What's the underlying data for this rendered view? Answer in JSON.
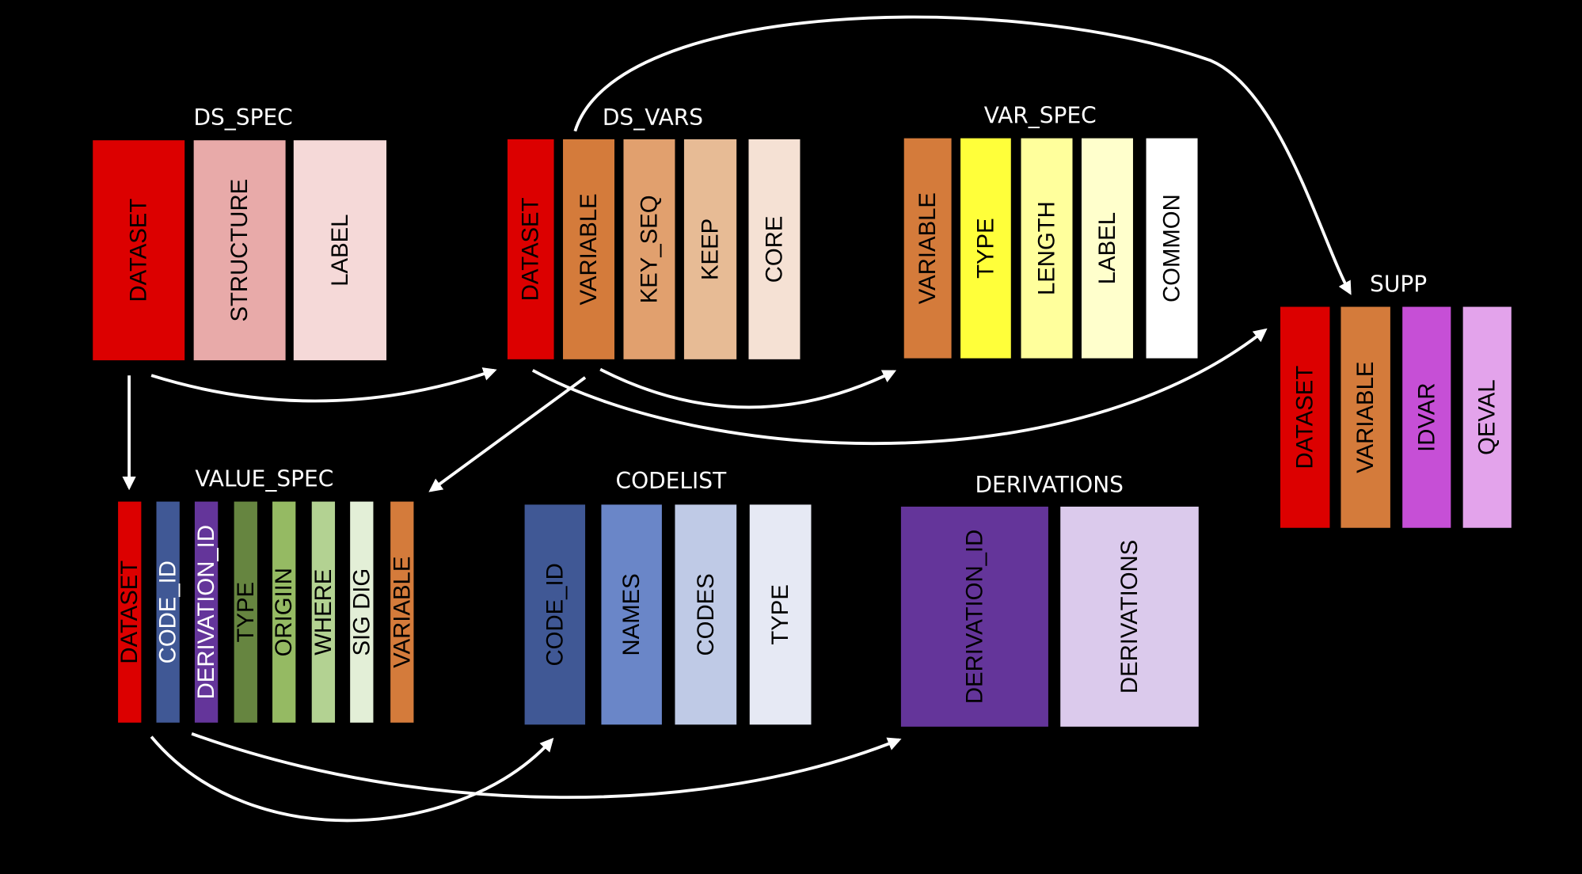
{
  "tables": [
    {
      "id": "ds_spec",
      "title": "DS_SPEC",
      "columns": [
        {
          "label": "DATASET",
          "color": "#dc0000",
          "text": "#000"
        },
        {
          "label": "STRUCTURE",
          "color": "#e8aaa9",
          "text": "#000"
        },
        {
          "label": "LABEL",
          "color": "#f5d9d8",
          "text": "#000"
        }
      ]
    },
    {
      "id": "ds_vars",
      "title": "DS_VARS",
      "columns": [
        {
          "label": "DATASET",
          "color": "#dc0000",
          "text": "#000"
        },
        {
          "label": "VARIABLE",
          "color": "#d47b3b",
          "text": "#000"
        },
        {
          "label": "KEY_SEQ",
          "color": "#e1a06e",
          "text": "#000"
        },
        {
          "label": "KEEP",
          "color": "#e7bb95",
          "text": "#000"
        },
        {
          "label": "CORE",
          "color": "#f5e1d4",
          "text": "#000"
        }
      ]
    },
    {
      "id": "var_spec",
      "title": "VAR_SPEC",
      "columns": [
        {
          "label": "VARIABLE",
          "color": "#d47b3b",
          "text": "#000"
        },
        {
          "label": "TYPE",
          "color": "#ffff3a",
          "text": "#000"
        },
        {
          "label": "LENGTH",
          "color": "#ffff9c",
          "text": "#000"
        },
        {
          "label": "LABEL",
          "color": "#ffffcc",
          "text": "#000"
        },
        {
          "label": "COMMON",
          "color": "#ffffff",
          "text": "#000"
        }
      ]
    },
    {
      "id": "supp",
      "title": "SUPP",
      "columns": [
        {
          "label": "DATASET",
          "color": "#dc0000",
          "text": "#000"
        },
        {
          "label": "VARIABLE",
          "color": "#d47b3b",
          "text": "#000"
        },
        {
          "label": "IDVAR",
          "color": "#c64fd6",
          "text": "#000"
        },
        {
          "label": "QEVAL",
          "color": "#e3a3eb",
          "text": "#000"
        }
      ]
    },
    {
      "id": "value_spec",
      "title": "VALUE_SPEC",
      "columns": [
        {
          "label": "DATASET",
          "color": "#dc0000",
          "text": "#000"
        },
        {
          "label": "CODE_ID",
          "color": "#405895",
          "text": "#fff"
        },
        {
          "label": "DERIVATION_ID",
          "color": "#64359a",
          "text": "#fff"
        },
        {
          "label": "TYPE",
          "color": "#668540",
          "text": "#000"
        },
        {
          "label": "ORIGIIN",
          "color": "#95ba63",
          "text": "#000"
        },
        {
          "label": "WHERE",
          "color": "#b3d292",
          "text": "#000"
        },
        {
          "label": "SIG DIG",
          "color": "#e3efd7",
          "text": "#000"
        },
        {
          "label": "VARIABLE",
          "color": "#d47b3b",
          "text": "#000"
        }
      ]
    },
    {
      "id": "codelist",
      "title": "CODELIST",
      "columns": [
        {
          "label": "CODE_ID",
          "color": "#405895",
          "text": "#000"
        },
        {
          "label": "NAMES",
          "color": "#6a86c8",
          "text": "#000"
        },
        {
          "label": "CODES",
          "color": "#bfcae6",
          "text": "#000"
        },
        {
          "label": "TYPE",
          "color": "#e6e9f4",
          "text": "#000"
        }
      ]
    },
    {
      "id": "derivations",
      "title": "DERIVATIONS",
      "columns": [
        {
          "label": "DERIVATION_ID",
          "color": "#64359a",
          "text": "#000"
        },
        {
          "label": "DERIVATIONS",
          "color": "#dbcaec",
          "text": "#000"
        }
      ]
    }
  ]
}
